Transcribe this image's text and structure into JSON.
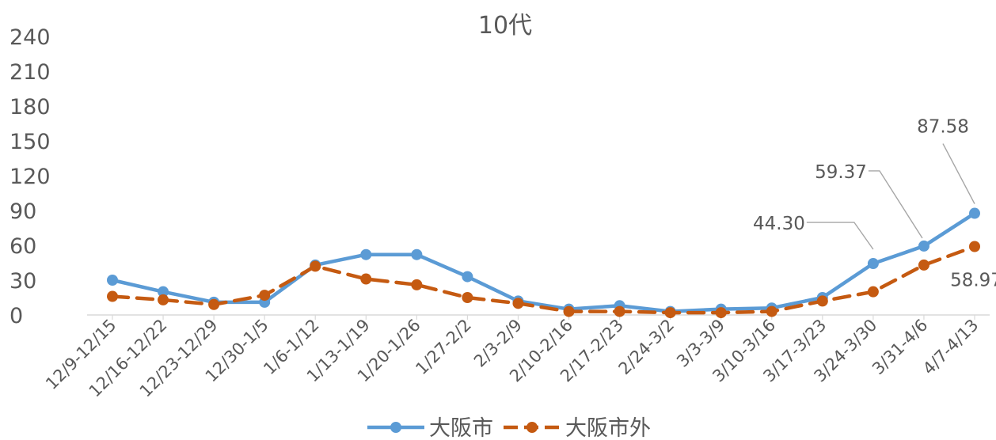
{
  "chart_data": {
    "type": "line",
    "title": "10代",
    "xlabel": "",
    "ylabel": "",
    "ylim": [
      0,
      240
    ],
    "yticks": [
      0,
      30,
      60,
      90,
      120,
      150,
      180,
      210,
      240
    ],
    "grid": false,
    "legend_position": "bottom",
    "categories": [
      "12/9-12/15",
      "12/16-12/22",
      "12/23-12/29",
      "12/30-1/5",
      "1/6-1/12",
      "1/13-1/19",
      "1/20-1/26",
      "1/27-2/2",
      "2/3-2/9",
      "2/10-2/16",
      "2/17-2/23",
      "2/24-3/2",
      "3/3-3/9",
      "3/10-3/16",
      "3/17-3/23",
      "3/24-3/30",
      "3/31-4/6",
      "4/7-4/13"
    ],
    "series": [
      {
        "name": "大阪市",
        "color": "#5B9BD5",
        "style": "solid",
        "values": [
          30,
          20,
          11,
          11,
          43,
          52,
          52,
          33,
          12,
          5,
          8,
          3,
          5,
          6,
          15,
          44.3,
          59.37,
          87.58
        ],
        "labels": [
          null,
          null,
          null,
          null,
          null,
          null,
          null,
          null,
          null,
          null,
          null,
          null,
          null,
          null,
          null,
          "44.30",
          "59.37",
          "87.58"
        ]
      },
      {
        "name": "大阪市外",
        "color": "#C55A11",
        "style": "dashed",
        "values": [
          16,
          13,
          9,
          17,
          42,
          31,
          26,
          15,
          10,
          3,
          3,
          2,
          2,
          3,
          12,
          20,
          43,
          58.97
        ],
        "labels": [
          null,
          null,
          null,
          null,
          null,
          null,
          null,
          null,
          null,
          null,
          null,
          null,
          null,
          null,
          null,
          null,
          null,
          "58.97"
        ]
      }
    ]
  }
}
